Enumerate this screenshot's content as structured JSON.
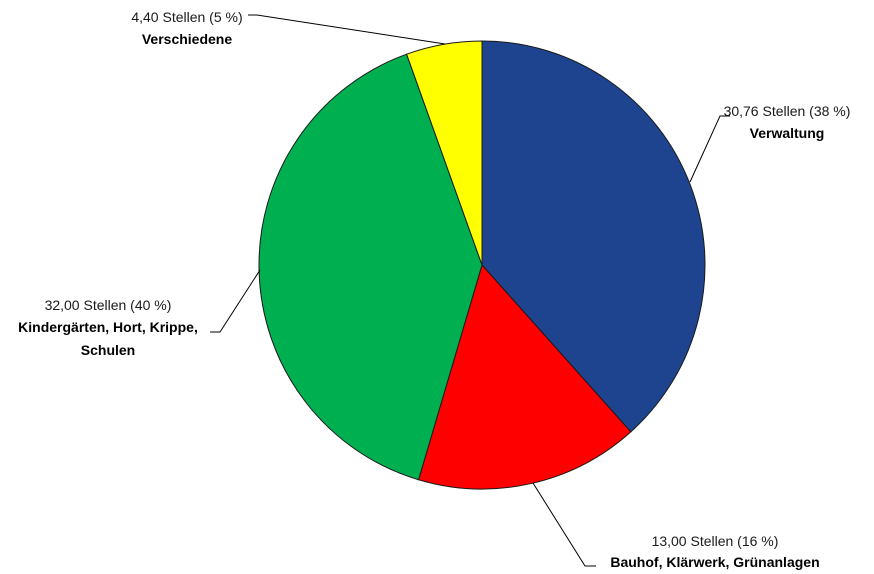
{
  "chart_data": {
    "type": "pie",
    "slices": [
      {
        "name": "Verwaltung",
        "value": 30.76,
        "value_label": "30,76 Stellen (38 %)",
        "color": "#1F448F"
      },
      {
        "name": "Bauhof, Klärwerk, Grünanlagen",
        "value": 13.0,
        "value_label": "13,00 Stellen (16 %)",
        "color": "#FF0000"
      },
      {
        "name": "Kindergärten, Hort, Krippe, Schulen",
        "value": 32.0,
        "value_label": "32,00 Stellen (40 %)",
        "name_lines": [
          "Kindergärten, Hort, Krippe,",
          "Schulen"
        ],
        "color": "#00B050"
      },
      {
        "name": "Verschiedene",
        "value": 4.4,
        "value_label": "4,40 Stellen (5 %)",
        "color": "#FFFF00"
      }
    ]
  }
}
